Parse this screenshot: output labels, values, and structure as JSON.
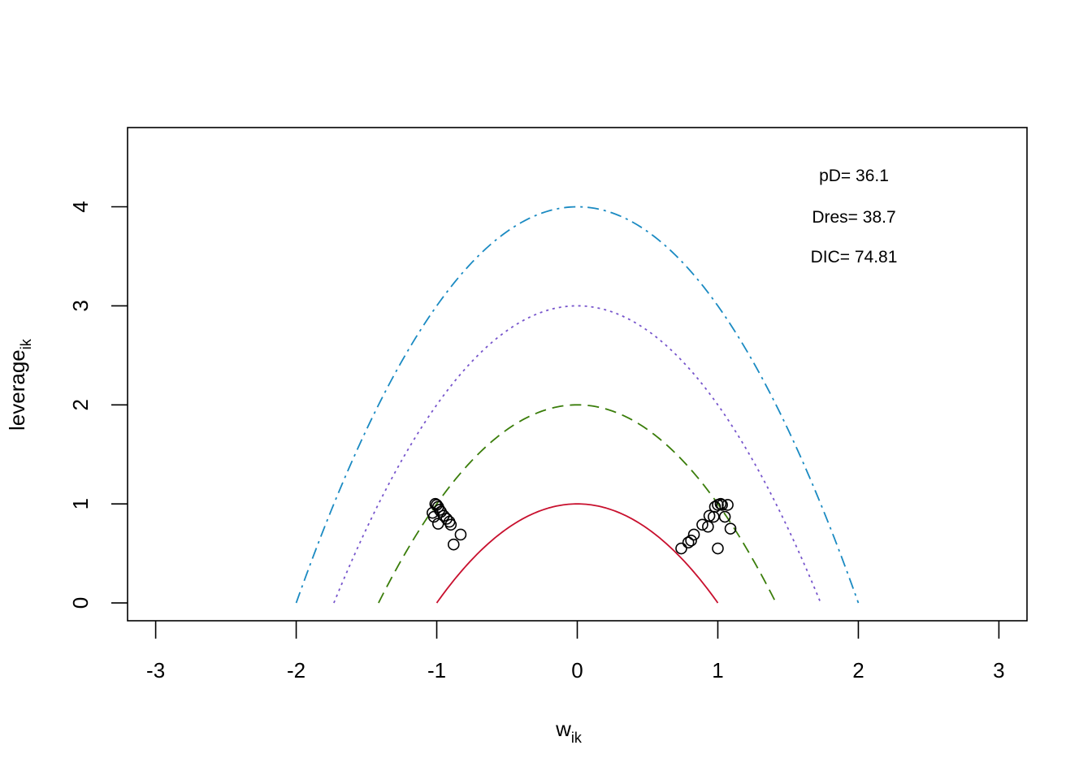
{
  "chart_data": {
    "type": "scatter",
    "title": "",
    "xlabel": {
      "main": "w",
      "sub": "ik"
    },
    "ylabel": {
      "main": "leverage",
      "sub": "ik"
    },
    "xlim": [
      -3.2,
      3.2
    ],
    "ylim": [
      -0.18,
      4.8
    ],
    "x_ticks": [
      -3,
      -2,
      -1,
      0,
      1,
      2,
      3
    ],
    "y_ticks": [
      0,
      1,
      2,
      3,
      4
    ],
    "grid": false,
    "legend": "none",
    "annotations": [
      "pD= 36.1",
      "Dres= 38.7",
      "DIC= 74.81"
    ],
    "curves": [
      {
        "c": 1,
        "style": "solid",
        "color": "#c8102e"
      },
      {
        "c": 2,
        "style": "dashed",
        "color": "#3a7d0a"
      },
      {
        "c": 3,
        "style": "dotted",
        "color": "#7755cc"
      },
      {
        "c": 4,
        "style": "dash-dot",
        "color": "#1a8ac2"
      }
    ],
    "points": [
      {
        "x": -1.03,
        "y": 0.91
      },
      {
        "x": -1.02,
        "y": 0.87
      },
      {
        "x": -1.01,
        "y": 1.0
      },
      {
        "x": -1.0,
        "y": 0.99
      },
      {
        "x": -0.99,
        "y": 0.97
      },
      {
        "x": -0.98,
        "y": 0.94
      },
      {
        "x": -0.97,
        "y": 0.92
      },
      {
        "x": -0.99,
        "y": 0.8
      },
      {
        "x": -0.95,
        "y": 0.88
      },
      {
        "x": -0.93,
        "y": 0.85
      },
      {
        "x": -0.91,
        "y": 0.82
      },
      {
        "x": -0.9,
        "y": 0.79
      },
      {
        "x": -0.88,
        "y": 0.59
      },
      {
        "x": -0.83,
        "y": 0.69
      },
      {
        "x": 0.74,
        "y": 0.55
      },
      {
        "x": 0.79,
        "y": 0.61
      },
      {
        "x": 0.81,
        "y": 0.63
      },
      {
        "x": 0.83,
        "y": 0.69
      },
      {
        "x": 0.89,
        "y": 0.79
      },
      {
        "x": 0.93,
        "y": 0.77
      },
      {
        "x": 0.94,
        "y": 0.88
      },
      {
        "x": 0.97,
        "y": 0.87
      },
      {
        "x": 0.98,
        "y": 0.97
      },
      {
        "x": 1.0,
        "y": 0.99
      },
      {
        "x": 1.02,
        "y": 1.0
      },
      {
        "x": 1.03,
        "y": 0.99
      },
      {
        "x": 1.05,
        "y": 0.87
      },
      {
        "x": 1.07,
        "y": 0.99
      },
      {
        "x": 1.09,
        "y": 0.75
      },
      {
        "x": 1.0,
        "y": 0.55
      }
    ]
  }
}
